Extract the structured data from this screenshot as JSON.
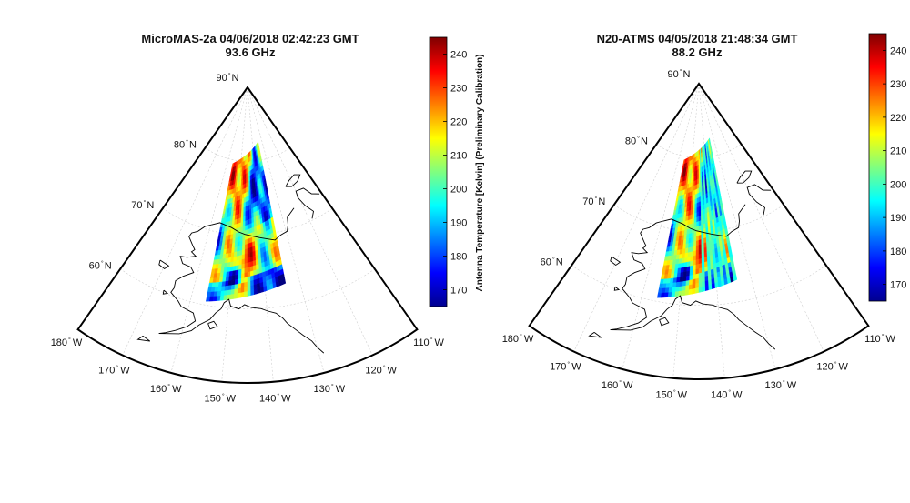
{
  "panels": [
    {
      "id": "micromas",
      "title_line1": "MicroMAS-2a 04/06/2018 02:42:23 GMT",
      "title_line2": "93.6 GHz",
      "pattern": "smooth"
    },
    {
      "id": "atms",
      "title_line1": "N20-ATMS 04/05/2018 21:48:34 GMT",
      "title_line2": "88.2 GHz",
      "pattern": "striped"
    }
  ],
  "map": {
    "lat_labels": [
      {
        "value": "90",
        "hemi": "N"
      },
      {
        "value": "80",
        "hemi": "N"
      },
      {
        "value": "70",
        "hemi": "N"
      },
      {
        "value": "60",
        "hemi": "N"
      }
    ],
    "lon_labels": [
      {
        "value": "180",
        "hemi": "W"
      },
      {
        "value": "170",
        "hemi": "W"
      },
      {
        "value": "160",
        "hemi": "W"
      },
      {
        "value": "150",
        "hemi": "W"
      },
      {
        "value": "140",
        "hemi": "W"
      },
      {
        "value": "130",
        "hemi": "W"
      },
      {
        "value": "120",
        "hemi": "W"
      },
      {
        "value": "110",
        "hemi": "W"
      }
    ],
    "lat_range": [
      50,
      90
    ],
    "lon_range": [
      -180,
      -110
    ]
  },
  "colorbar": {
    "label": "Antenna Temperature [Kelvin] (Preliminary Calibration)",
    "ticks": [
      "240",
      "230",
      "220",
      "210",
      "200",
      "190",
      "180",
      "170"
    ],
    "min": 165,
    "max": 245,
    "colormap": "jet"
  }
}
